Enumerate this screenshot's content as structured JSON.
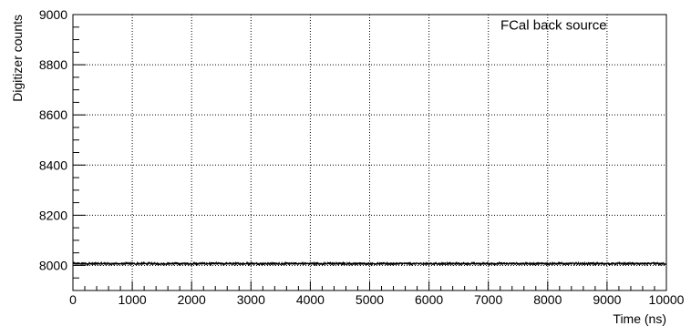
{
  "chart_data": {
    "type": "line",
    "annotation": "FCal back source",
    "xlabel": "Time (ns)",
    "ylabel": "Digitizer counts",
    "xlim": [
      0,
      10000
    ],
    "ylim": [
      7900,
      9000
    ],
    "x_ticks": [
      0,
      1000,
      2000,
      3000,
      4000,
      5000,
      6000,
      7000,
      8000,
      9000,
      10000
    ],
    "x_tick_labels": [
      "0",
      "1000",
      "2000",
      "3000",
      "4000",
      "5000",
      "6000",
      "7000",
      "8000",
      "9000",
      "10000"
    ],
    "y_ticks": [
      8000,
      8200,
      8400,
      8600,
      8800,
      9000
    ],
    "y_tick_labels": [
      "8000",
      "8200",
      "8400",
      "8600",
      "8800",
      "9000"
    ],
    "grid": true,
    "series": [
      {
        "color": "#000000",
        "baseline": 8007,
        "noise_amplitude": 4,
        "x_start": 0,
        "x_end": 10000,
        "x_step": 4
      }
    ]
  }
}
